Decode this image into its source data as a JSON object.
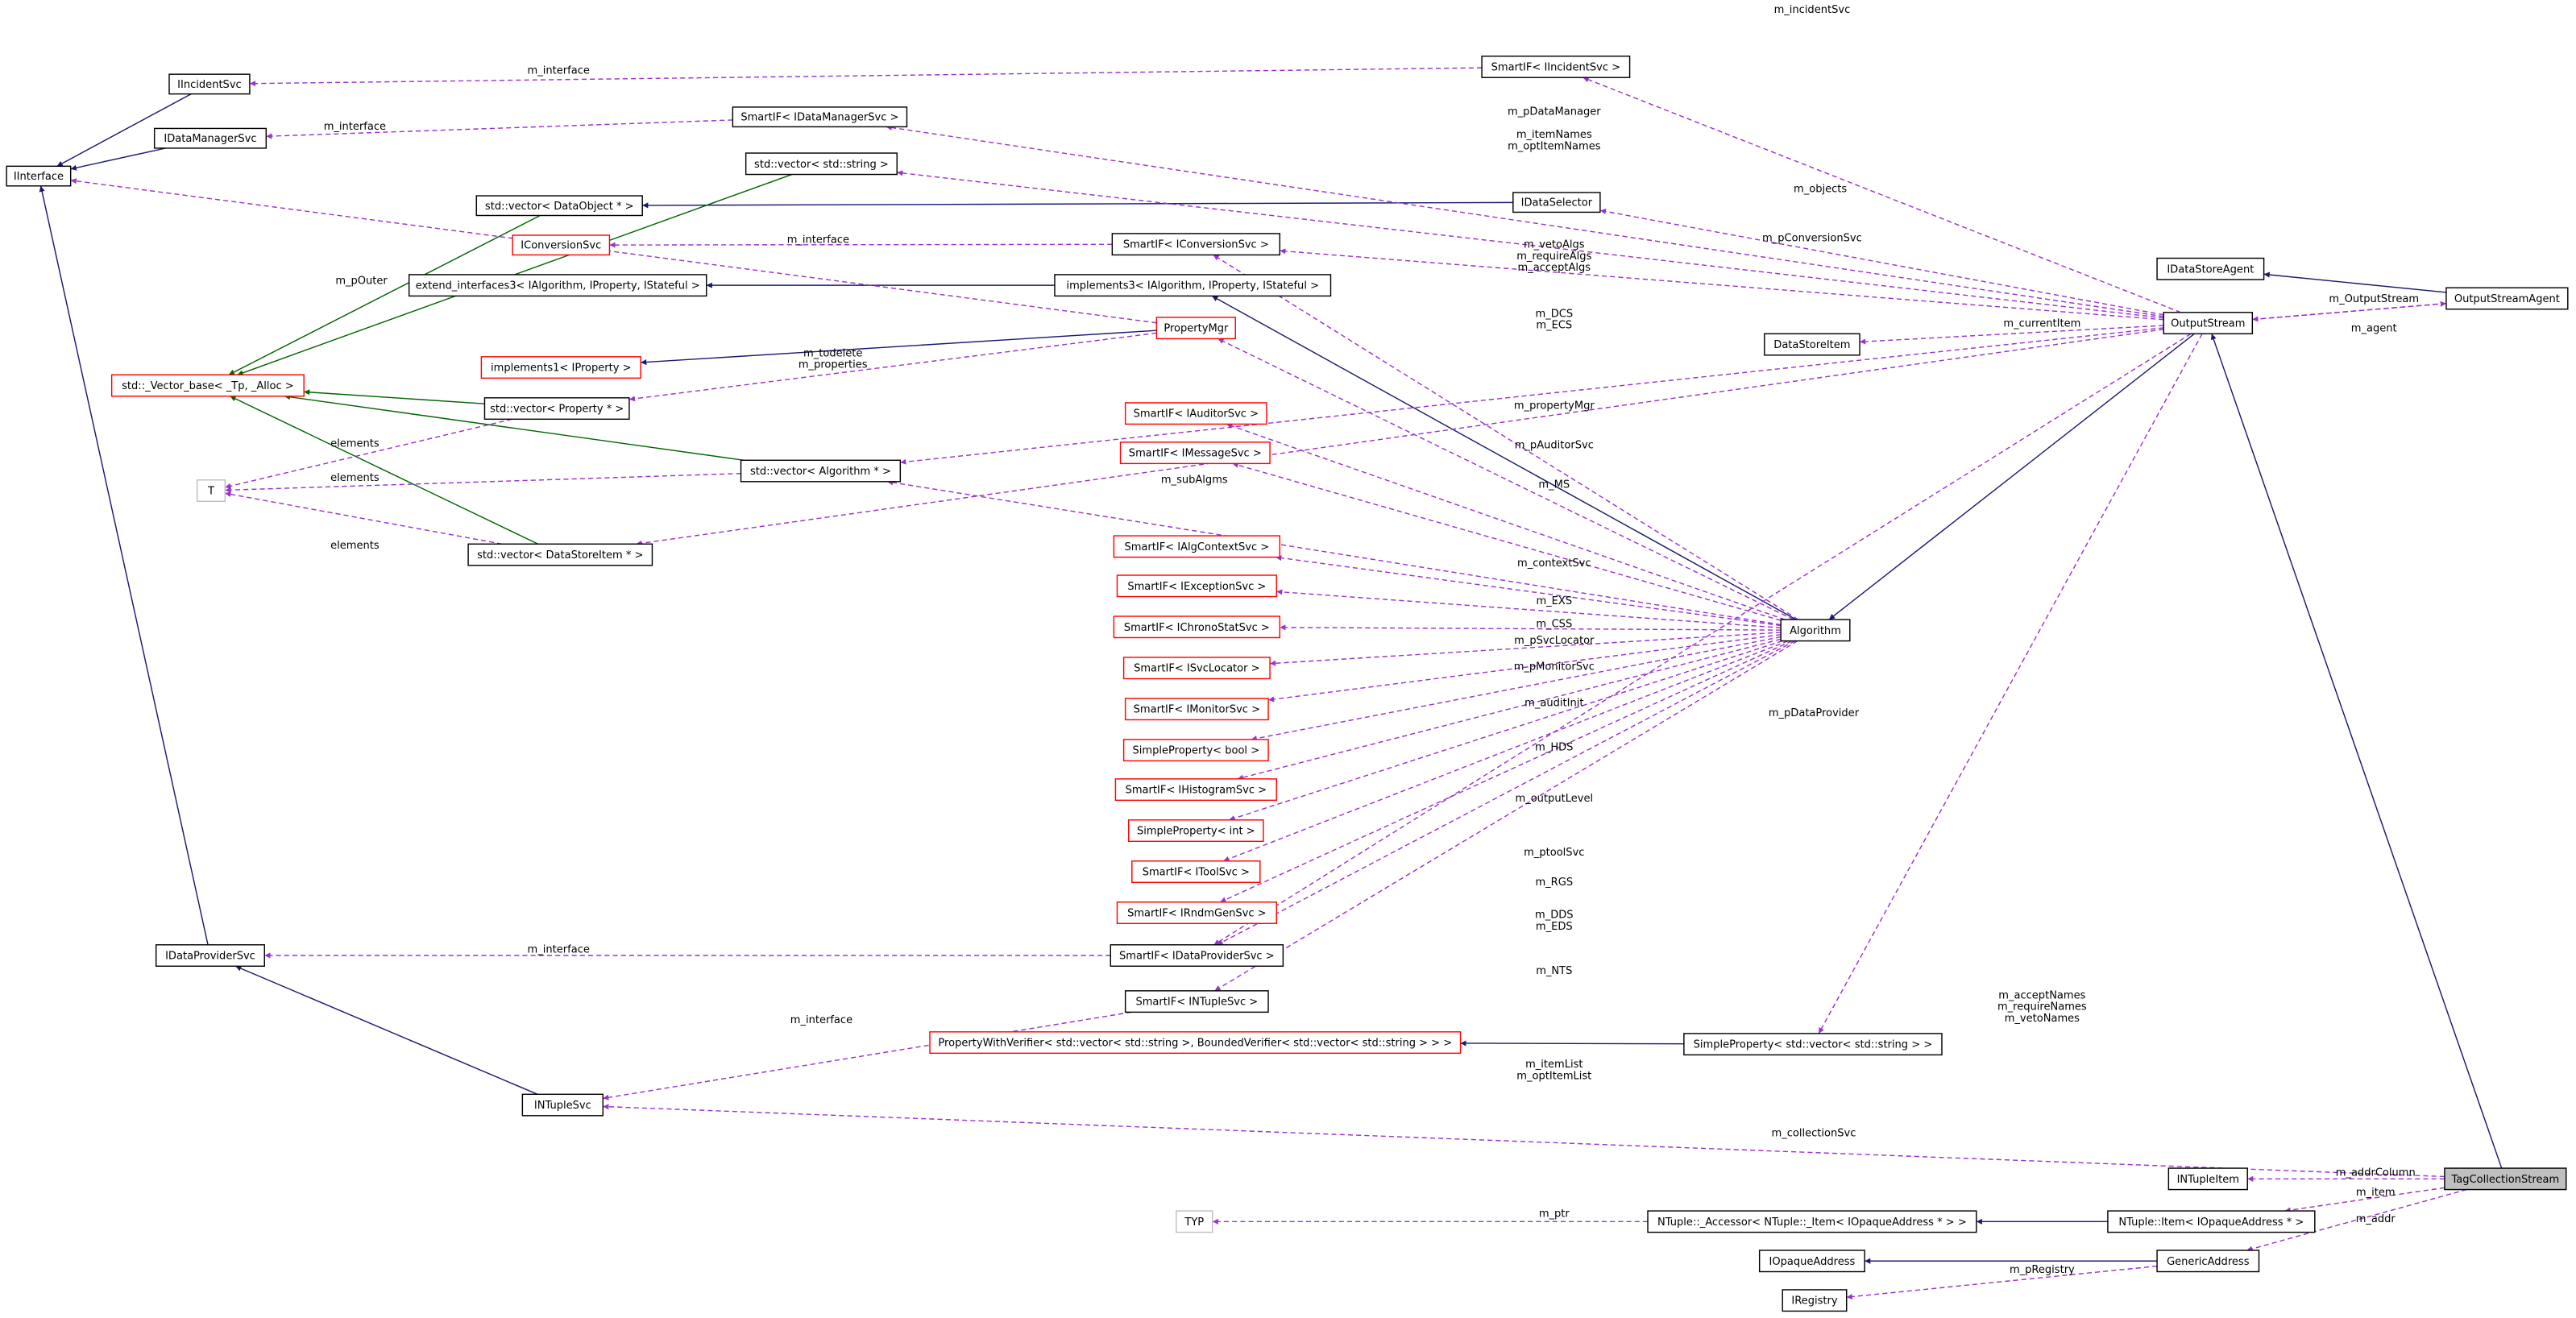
{
  "nodes": [
    "IIncidentSvc",
    "IDataManagerSvc",
    "IInterface",
    "SmartIF< IIncidentSvc >",
    "SmartIF< IDataManagerSvc >",
    "std::vector< std::string >",
    "std::vector< DataObject * >",
    "IDataSelector",
    "IConversionSvc",
    "SmartIF< IConversionSvc >",
    "IDataStoreAgent",
    "extend_interfaces3< IAlgorithm, IProperty, IStateful >",
    "implements3< IAlgorithm, IProperty, IStateful >",
    "OutputStreamAgent",
    "OutputStream",
    "PropertyMgr",
    "DataStoreItem",
    "implements1< IProperty >",
    "std::_Vector_base< _Tp, _Alloc >",
    "std::vector< Property * >",
    "SmartIF< IAuditorSvc >",
    "SmartIF< IMessageSvc >",
    "std::vector< Algorithm * >",
    "T",
    "std::vector< DataStoreItem * >",
    "SmartIF< IAlgContextSvc >",
    "SmartIF< IExceptionSvc >",
    "SmartIF< IChronoStatSvc >",
    "Algorithm",
    "SmartIF< ISvcLocator >",
    "SmartIF< IMonitorSvc >",
    "SimpleProperty< bool >",
    "SmartIF< IHistogramSvc >",
    "SimpleProperty< int >",
    "SmartIF< IToolSvc >",
    "SmartIF< IRndmGenSvc >",
    "IDataProviderSvc",
    "SmartIF< IDataProviderSvc >",
    "SmartIF< INTupleSvc >",
    "PropertyWithVerifier< std::vector< std::string >, BoundedVerifier< std::vector< std::string > > >",
    "SimpleProperty< std::vector< std::string > >",
    "INTupleSvc",
    "INTupleItem",
    "TagCollectionStream",
    "TYP",
    "NTuple::_Accessor< NTuple::_Item< IOpaqueAddress * > >",
    "NTuple::Item< IOpaqueAddress * >",
    "IOpaqueAddress",
    "GenericAddress",
    "IRegistry"
  ],
  "edge_labels": [
    [
      "m_incidentSvc"
    ],
    [
      "m_interface"
    ],
    [
      "m_interface"
    ],
    [
      "m_pDataManager"
    ],
    [
      "m_itemNames",
      "m_optItemNames"
    ],
    [
      "m_objects"
    ],
    [
      "m_interface"
    ],
    [
      "m_pConversionSvc"
    ],
    [
      "m_pOuter"
    ],
    [
      "m_vetoAlgs",
      "m_requireAlgs",
      "m_acceptAlgs"
    ],
    [
      "m_DCS",
      "m_ECS"
    ],
    [
      "m_OutputStream"
    ],
    [
      "m_currentItem"
    ],
    [
      "m_agent"
    ],
    [
      "m_todelete",
      "m_properties"
    ],
    [
      "m_propertyMgr"
    ],
    [
      "elements"
    ],
    [
      "elements"
    ],
    [
      "m_pAuditorSvc"
    ],
    [
      "m_MS"
    ],
    [
      "m_subAlgms"
    ],
    [
      "elements"
    ],
    [
      "m_contextSvc"
    ],
    [
      "m_EXS"
    ],
    [
      "m_CSS"
    ],
    [
      "m_pSvcLocator"
    ],
    [
      "m_pMonitorSvc"
    ],
    [
      "m_auditInit"
    ],
    [
      "m_pDataProvider"
    ],
    [
      "m_HDS"
    ],
    [
      "m_outputLevel"
    ],
    [
      "m_ptoolSvc"
    ],
    [
      "m_RGS"
    ],
    [
      "m_interface"
    ],
    [
      "m_DDS",
      "m_EDS"
    ],
    [
      "m_NTS"
    ],
    [
      "m_interface"
    ],
    [
      "m_acceptNames",
      "m_requireNames",
      "m_vetoNames"
    ],
    [
      "m_itemList",
      "m_optItemList"
    ],
    [
      "m_collectionSvc"
    ],
    [
      "m_addrColumn"
    ],
    [
      "m_item"
    ],
    [
      "m_addr"
    ],
    [
      "m_ptr"
    ],
    [
      "m_pRegistry"
    ]
  ]
}
